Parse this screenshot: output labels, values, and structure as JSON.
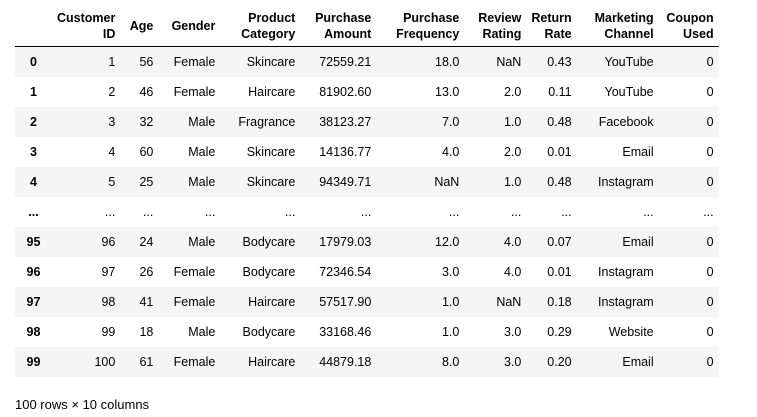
{
  "columns": {
    "index": "",
    "customer_id": [
      "Customer",
      "ID"
    ],
    "age": "Age",
    "gender": "Gender",
    "product_category": [
      "Product",
      "Category"
    ],
    "purchase_amount": [
      "Purchase",
      "Amount"
    ],
    "purchase_frequency": [
      "Purchase",
      "Frequency"
    ],
    "review_rating": [
      "Review",
      "Rating"
    ],
    "return_rate": [
      "Return",
      "Rate"
    ],
    "marketing_channel": [
      "Marketing",
      "Channel"
    ],
    "coupon_used": [
      "Coupon",
      "Used"
    ]
  },
  "rows": [
    [
      "0",
      "1",
      "56",
      "Female",
      "Skincare",
      "72559.21",
      "18.0",
      "NaN",
      "0.43",
      "YouTube",
      "0"
    ],
    [
      "1",
      "2",
      "46",
      "Female",
      "Haircare",
      "81902.60",
      "13.0",
      "2.0",
      "0.11",
      "YouTube",
      "0"
    ],
    [
      "2",
      "3",
      "32",
      "Male",
      "Fragrance",
      "38123.27",
      "7.0",
      "1.0",
      "0.48",
      "Facebook",
      "0"
    ],
    [
      "3",
      "4",
      "60",
      "Male",
      "Skincare",
      "14136.77",
      "4.0",
      "2.0",
      "0.01",
      "Email",
      "0"
    ],
    [
      "4",
      "5",
      "25",
      "Male",
      "Skincare",
      "94349.71",
      "NaN",
      "1.0",
      "0.48",
      "Instagram",
      "0"
    ],
    [
      "...",
      "...",
      "...",
      "...",
      "...",
      "...",
      "...",
      "...",
      "...",
      "...",
      "..."
    ],
    [
      "95",
      "96",
      "24",
      "Male",
      "Bodycare",
      "17979.03",
      "12.0",
      "4.0",
      "0.07",
      "Email",
      "0"
    ],
    [
      "96",
      "97",
      "26",
      "Female",
      "Bodycare",
      "72346.54",
      "3.0",
      "4.0",
      "0.01",
      "Instagram",
      "0"
    ],
    [
      "97",
      "98",
      "41",
      "Female",
      "Haircare",
      "57517.90",
      "1.0",
      "NaN",
      "0.18",
      "Instagram",
      "0"
    ],
    [
      "98",
      "99",
      "18",
      "Male",
      "Bodycare",
      "33168.46",
      "1.0",
      "3.0",
      "0.29",
      "Website",
      "0"
    ],
    [
      "99",
      "100",
      "61",
      "Female",
      "Haircare",
      "44879.18",
      "8.0",
      "3.0",
      "0.20",
      "Email",
      "0"
    ]
  ],
  "footer": "100 rows × 10 columns"
}
